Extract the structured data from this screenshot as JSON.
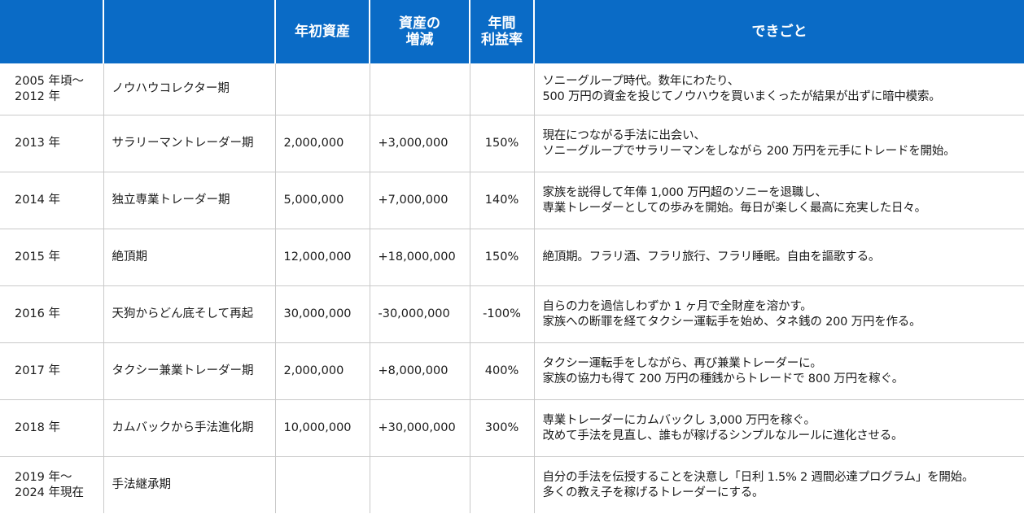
{
  "table": {
    "headers": [
      "",
      "",
      "年初資産",
      "資産の\n増減",
      "年間\n利益率",
      "できごと"
    ],
    "rows": [
      {
        "year": "2005 年頃〜\n2012 年",
        "period": "ノウハウコレクター期",
        "start_assets": "",
        "change": "",
        "rate": "",
        "event": "ソニーグループ時代。数年にわたり、\n500 万円の資金を投じてノウハウを買いまくったが結果が出ずに暗中模索。",
        "negative": false
      },
      {
        "year": "2013 年",
        "period": "サラリーマントレーダー期",
        "start_assets": "2,000,000",
        "change": "+3,000,000",
        "rate": "150%",
        "event": "現在につながる手法に出会い、\nソニーグループでサラリーマンをしながら 200 万円を元手にトレードを開始。",
        "negative": false
      },
      {
        "year": "2014 年",
        "period": "独立専業トレーダー期",
        "start_assets": "5,000,000",
        "change": "+7,000,000",
        "rate": "140%",
        "event": "家族を説得して年俸 1,000 万円超のソニーを退職し、\n専業トレーダーとしての歩みを開始。毎日が楽しく最高に充実した日々。",
        "negative": false
      },
      {
        "year": "2015 年",
        "period": "絶頂期",
        "start_assets": "12,000,000",
        "change": "+18,000,000",
        "rate": "150%",
        "event": "絶頂期。フラリ酒、フラリ旅行、フラリ睡眠。自由を謳歌する。",
        "negative": false
      },
      {
        "year": "2016 年",
        "period": "天狗からどん底そして再起",
        "start_assets": "30,000,000",
        "change": "-30,000,000",
        "rate": "-100%",
        "event": "自らの力を過信しわずか 1 ヶ月で全財産を溶かす。\n家族への断罪を経てタクシー運転手を始め、タネ銭の 200 万円を作る。",
        "negative": true
      },
      {
        "year": "2017 年",
        "period": "タクシー兼業トレーダー期",
        "start_assets": "2,000,000",
        "change": "+8,000,000",
        "rate": "400%",
        "event": "タクシー運転手をしながら、再び兼業トレーダーに。\n家族の協力も得て 200 万円の種銭からトレードで 800 万円を稼ぐ。",
        "negative": false
      },
      {
        "year": "2018 年",
        "period": "カムバックから手法進化期",
        "start_assets": "10,000,000",
        "change": "+30,000,000",
        "rate": "300%",
        "event": "専業トレーダーにカムバックし 3,000 万円を稼ぐ。\n改めて手法を見直し、誰もが稼げるシンプルなルールに進化させる。",
        "negative": false
      },
      {
        "year": "2019 年〜\n2024 年現在",
        "period": "手法継承期",
        "start_assets": "",
        "change": "",
        "rate": "",
        "event": "自分の手法を伝授することを決意し「日利 1.5% 2 週間必達プログラム」を開始。\n多くの教え子を稼げるトレーダーにする。",
        "negative": false
      }
    ]
  },
  "colors": {
    "header_background": "#0a6bc6",
    "header_text": "#ffffff",
    "negative_value": "#e02020",
    "grid_line": "#c9c9c9"
  }
}
